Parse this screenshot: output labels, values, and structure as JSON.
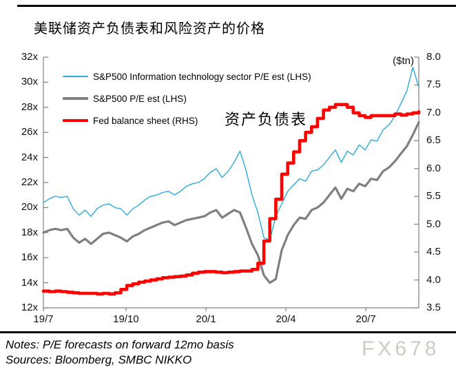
{
  "page": {
    "title": "美联储资产负债表和风险资产的价格",
    "notes_line1": "Notes: P/E forecasts on forward 12mo basis",
    "notes_line2": "Sources: Bloomberg, SMBC NIKKO",
    "watermark": "FX678"
  },
  "chart_data": {
    "type": "line",
    "title": "美联储资产负债表和风险资产的价格",
    "annotation": "资产负债表",
    "grid": false,
    "legend_position": "top-left-inside",
    "x_tick_labels": [
      "19/7",
      "19/10",
      "20/1",
      "20/4",
      "20/7"
    ],
    "left_axis": {
      "unit": "P/E multiple (x)",
      "range": [
        12,
        32
      ],
      "ticks": [
        "32x",
        "30x",
        "28x",
        "26x",
        "24x",
        "22x",
        "20x",
        "18x",
        "16x",
        "14x",
        "12x"
      ]
    },
    "right_axis": {
      "label": "($tn)",
      "range": [
        3.5,
        8.0
      ],
      "ticks": [
        "8.0",
        "7.5",
        "7.0",
        "6.5",
        "6.0",
        "5.5",
        "5.0",
        "4.5",
        "4.0",
        "3.5"
      ]
    },
    "dates": [
      "2019-07-01",
      "2019-07-08",
      "2019-07-15",
      "2019-07-22",
      "2019-07-29",
      "2019-08-05",
      "2019-08-12",
      "2019-08-19",
      "2019-08-26",
      "2019-09-02",
      "2019-09-09",
      "2019-09-16",
      "2019-09-23",
      "2019-09-30",
      "2019-10-07",
      "2019-10-14",
      "2019-10-21",
      "2019-10-28",
      "2019-11-04",
      "2019-11-11",
      "2019-11-18",
      "2019-11-25",
      "2019-12-02",
      "2019-12-09",
      "2019-12-16",
      "2019-12-23",
      "2019-12-30",
      "2020-01-06",
      "2020-01-13",
      "2020-01-20",
      "2020-01-27",
      "2020-02-03",
      "2020-02-10",
      "2020-02-17",
      "2020-02-24",
      "2020-03-02",
      "2020-03-09",
      "2020-03-16",
      "2020-03-23",
      "2020-03-30",
      "2020-04-06",
      "2020-04-13",
      "2020-04-20",
      "2020-04-27",
      "2020-05-04",
      "2020-05-11",
      "2020-05-18",
      "2020-05-25",
      "2020-06-01",
      "2020-06-08",
      "2020-06-15",
      "2020-06-22",
      "2020-06-29",
      "2020-07-06",
      "2020-07-13",
      "2020-07-20",
      "2020-07-27",
      "2020-08-03",
      "2020-08-10",
      "2020-08-17",
      "2020-08-24",
      "2020-08-31",
      "2020-09-07",
      "2020-09-14"
    ],
    "series": [
      {
        "name": "S&P500 Information technology sector P/E est (LHS)",
        "axis": "left",
        "color": "#2BA9DF",
        "width": 1.4,
        "style": "line",
        "values": [
          20.4,
          20.7,
          20.9,
          20.8,
          20.9,
          19.9,
          19.4,
          19.8,
          19.3,
          19.9,
          20.2,
          20.3,
          20.0,
          19.9,
          19.4,
          19.9,
          20.2,
          20.6,
          20.9,
          21.0,
          21.2,
          21.3,
          21.0,
          21.3,
          21.7,
          21.9,
          22.0,
          22.3,
          22.8,
          23.1,
          22.4,
          22.9,
          23.6,
          24.5,
          23.0,
          21.0,
          19.6,
          17.6,
          17.4,
          19.3,
          20.3,
          21.3,
          21.8,
          22.3,
          22.1,
          22.9,
          23.0,
          23.4,
          24.0,
          24.6,
          23.6,
          24.5,
          24.2,
          25.0,
          24.6,
          25.4,
          25.3,
          26.2,
          26.6,
          27.3,
          28.3,
          29.3,
          31.2,
          29.6
        ]
      },
      {
        "name": "S&P500 P/E est (LHS)",
        "axis": "left",
        "color": "#7F7F7F",
        "width": 3.2,
        "style": "line",
        "values": [
          18.0,
          18.2,
          18.3,
          18.2,
          18.3,
          17.6,
          17.2,
          17.5,
          17.1,
          17.5,
          17.9,
          18.0,
          17.8,
          17.6,
          17.3,
          17.7,
          17.9,
          18.2,
          18.4,
          18.6,
          18.8,
          18.9,
          18.6,
          18.8,
          19.0,
          19.1,
          19.2,
          19.3,
          19.6,
          19.8,
          19.2,
          19.5,
          19.8,
          19.6,
          18.4,
          17.1,
          16.2,
          14.6,
          14.0,
          14.3,
          16.6,
          17.8,
          18.6,
          19.2,
          19.1,
          19.8,
          20.0,
          20.4,
          21.0,
          21.6,
          20.7,
          21.5,
          21.3,
          21.9,
          21.7,
          22.3,
          22.2,
          22.9,
          23.2,
          23.7,
          24.3,
          24.9,
          25.8,
          26.8
        ]
      },
      {
        "name": "Fed balance sheet (RHS)",
        "axis": "right",
        "color": "#FE0000",
        "width": 4.6,
        "style": "step",
        "values": [
          3.8,
          3.79,
          3.8,
          3.79,
          3.78,
          3.77,
          3.76,
          3.76,
          3.76,
          3.75,
          3.76,
          3.75,
          3.77,
          3.83,
          3.9,
          3.93,
          3.96,
          3.98,
          4.0,
          4.02,
          4.04,
          4.05,
          4.06,
          4.07,
          4.09,
          4.12,
          4.14,
          4.15,
          4.15,
          4.14,
          4.13,
          4.14,
          4.15,
          4.16,
          4.16,
          4.19,
          4.3,
          4.7,
          5.1,
          5.45,
          5.9,
          6.1,
          6.3,
          6.5,
          6.65,
          6.75,
          6.9,
          7.05,
          7.1,
          7.15,
          7.15,
          7.1,
          7.0,
          6.95,
          6.92,
          6.95,
          6.95,
          6.95,
          6.95,
          6.98,
          6.96,
          6.98,
          7.0,
          7.02
        ]
      }
    ]
  }
}
